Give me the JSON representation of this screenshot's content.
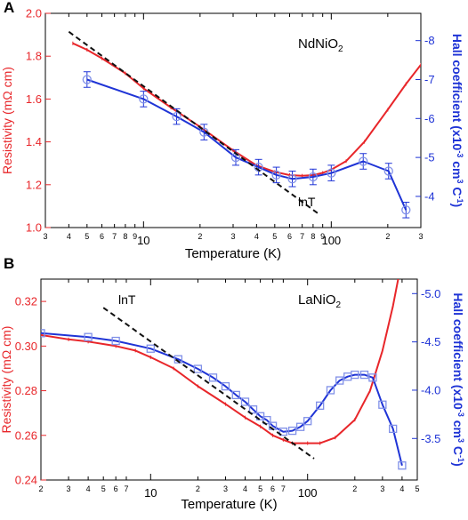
{
  "colors": {
    "resistivity": "#e8262a",
    "hall": "#1f34d6",
    "fit": "#111111",
    "axis": "#000000"
  },
  "chart_data": [
    {
      "type": "line",
      "panel_label": "A",
      "material": "NdNiO",
      "material_sub": "2",
      "xlabel": "Temperature (K)",
      "xscale": "log",
      "xlim": [
        3,
        300
      ],
      "major_ticks": [
        {
          "v": 10,
          "label": "10"
        },
        {
          "v": 100,
          "label": "100"
        }
      ],
      "minor_ticks": [
        {
          "v": 3,
          "label": "3"
        },
        {
          "v": 4,
          "label": "4"
        },
        {
          "v": 5,
          "label": "5"
        },
        {
          "v": 6,
          "label": "6"
        },
        {
          "v": 7,
          "label": "7"
        },
        {
          "v": 8,
          "label": "8"
        },
        {
          "v": 9,
          "label": "9"
        },
        {
          "v": 20,
          "label": "2"
        },
        {
          "v": 30,
          "label": "3"
        },
        {
          "v": 40,
          "label": "4"
        },
        {
          "v": 50,
          "label": "5"
        },
        {
          "v": 60,
          "label": "6"
        },
        {
          "v": 70,
          "label": "7"
        },
        {
          "v": 80,
          "label": "8"
        },
        {
          "v": 90,
          "label": "9"
        },
        {
          "v": 200,
          "label": "2"
        },
        {
          "v": 300,
          "label": "3"
        }
      ],
      "left_axis": {
        "label": "Resistivity (mΩ cm)",
        "ylim": [
          1.0,
          2.0
        ],
        "ticks": [
          {
            "v": 1.0,
            "label": "1.0"
          },
          {
            "v": 1.2,
            "label": "1.2"
          },
          {
            "v": 1.4,
            "label": "1.4"
          },
          {
            "v": 1.6,
            "label": "1.6"
          },
          {
            "v": 1.8,
            "label": "1.8"
          },
          {
            "v": 2.0,
            "label": "2.0"
          }
        ]
      },
      "right_axis": {
        "label": "Hall coefficient (x10",
        "label_sup": "-3",
        "label_mid": " cm",
        "label_sup2": "3",
        "label_mid2": " C",
        "label_sup3": "-1",
        "label_end": ")",
        "ylim": [
          -3.2,
          -8.7
        ],
        "ticks": [
          {
            "v": -4,
            "label": "-4"
          },
          {
            "v": -5,
            "label": "-5"
          },
          {
            "v": -6,
            "label": "-6"
          },
          {
            "v": -7,
            "label": "-7"
          },
          {
            "v": -8,
            "label": "-8"
          }
        ]
      },
      "fit": {
        "label": "lnT",
        "x": [
          4,
          85
        ],
        "y": [
          1.914,
          1.066
        ]
      },
      "series": [
        {
          "axis": "left",
          "marker": "none",
          "x": [
            4.2,
            5,
            6,
            8,
            10,
            14,
            20,
            30,
            40,
            50,
            60,
            70,
            80,
            90,
            100,
            120,
            150,
            200,
            250,
            300
          ],
          "y": [
            1.86,
            1.83,
            1.79,
            1.72,
            1.65,
            1.56,
            1.47,
            1.36,
            1.29,
            1.26,
            1.245,
            1.242,
            1.245,
            1.255,
            1.27,
            1.31,
            1.4,
            1.55,
            1.67,
            1.76
          ]
        },
        {
          "axis": "right",
          "marker": "circle",
          "x": [
            5,
            10,
            15,
            21,
            31,
            41,
            51,
            62,
            80,
            100,
            148,
            202,
            250
          ],
          "y": [
            -7.0,
            -6.5,
            -6.05,
            -5.65,
            -5.0,
            -4.75,
            -4.55,
            -4.45,
            -4.5,
            -4.6,
            -4.9,
            -4.65,
            -3.65
          ],
          "err": [
            0.2,
            0.2,
            0.2,
            0.2,
            0.2,
            0.2,
            0.2,
            0.2,
            0.2,
            0.2,
            0.2,
            0.2,
            0.2
          ]
        }
      ]
    },
    {
      "type": "line",
      "panel_label": "B",
      "material": "LaNiO",
      "material_sub": "2",
      "xlabel": "Temperature (K)",
      "xscale": "log",
      "xlim": [
        2,
        500
      ],
      "major_ticks": [
        {
          "v": 10,
          "label": "10"
        },
        {
          "v": 100,
          "label": "100"
        }
      ],
      "minor_ticks": [
        {
          "v": 2,
          "label": "2"
        },
        {
          "v": 3,
          "label": "3"
        },
        {
          "v": 4,
          "label": "4"
        },
        {
          "v": 5,
          "label": "5"
        },
        {
          "v": 6,
          "label": "6"
        },
        {
          "v": 7,
          "label": "7"
        },
        {
          "v": 20,
          "label": "2"
        },
        {
          "v": 30,
          "label": "3"
        },
        {
          "v": 40,
          "label": "4"
        },
        {
          "v": 50,
          "label": "5"
        },
        {
          "v": 60,
          "label": "6"
        },
        {
          "v": 70,
          "label": "7"
        },
        {
          "v": 200,
          "label": "2"
        },
        {
          "v": 300,
          "label": "3"
        },
        {
          "v": 400,
          "label": "4"
        },
        {
          "v": 500,
          "label": "5"
        }
      ],
      "left_axis": {
        "label": "Resistivity (mΩ cm)",
        "ylim": [
          0.24,
          0.33
        ],
        "ticks": [
          {
            "v": 0.24,
            "label": "0.24"
          },
          {
            "v": 0.26,
            "label": "0.26"
          },
          {
            "v": 0.28,
            "label": "0.28"
          },
          {
            "v": 0.3,
            "label": "0.30"
          },
          {
            "v": 0.32,
            "label": "0.32"
          }
        ]
      },
      "right_axis": {
        "label": "Hall coefficient (x10",
        "label_sup": "-3",
        "label_mid": " cm",
        "label_sup2": "3",
        "label_mid2": " C",
        "label_sup3": "-1",
        "label_end": ")",
        "ylim": [
          -3.07,
          -5.15
        ],
        "ticks": [
          {
            "v": -3.5,
            "label": "-3.5"
          },
          {
            "v": -4.0,
            "label": "-4.0"
          },
          {
            "v": -4.5,
            "label": "-4.5"
          },
          {
            "v": -5.0,
            "label": "-5.0"
          }
        ]
      },
      "fit": {
        "label": "lnT",
        "x": [
          5,
          110
        ],
        "y": [
          0.3172,
          0.2496
        ]
      },
      "series": [
        {
          "axis": "left",
          "marker": "none",
          "x": [
            2,
            3,
            4,
            6,
            8,
            10,
            14,
            20,
            30,
            40,
            50,
            60,
            70,
            80,
            100,
            120,
            150,
            200,
            250,
            300,
            350,
            380
          ],
          "y": [
            0.305,
            0.303,
            0.302,
            0.3,
            0.298,
            0.295,
            0.29,
            0.282,
            0.274,
            0.268,
            0.264,
            0.26,
            0.258,
            0.2565,
            0.2565,
            0.2565,
            0.259,
            0.267,
            0.28,
            0.298,
            0.318,
            0.331
          ]
        },
        {
          "axis": "right",
          "marker": "square",
          "x": [
            2,
            4,
            6,
            10,
            15,
            20,
            25,
            30,
            35,
            40,
            45,
            50,
            55,
            60,
            70,
            80,
            90,
            100,
            120,
            140,
            160,
            180,
            200,
            230,
            260,
            300,
            350,
            400
          ],
          "y": [
            -4.59,
            -4.55,
            -4.51,
            -4.43,
            -4.32,
            -4.22,
            -4.13,
            -4.04,
            -3.95,
            -3.88,
            -3.8,
            -3.73,
            -3.69,
            -3.63,
            -3.57,
            -3.58,
            -3.62,
            -3.68,
            -3.84,
            -4.0,
            -4.1,
            -4.14,
            -4.16,
            -4.16,
            -4.13,
            -3.85,
            -3.6,
            -3.22
          ]
        }
      ]
    }
  ]
}
